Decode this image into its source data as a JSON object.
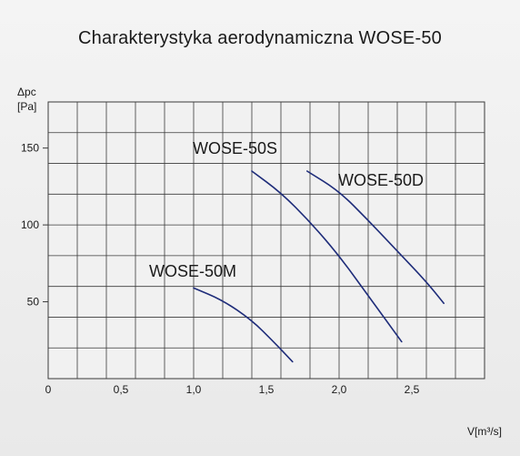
{
  "title": "Charakterystyka aerodynamiczna WOSE-50",
  "chart_data": {
    "type": "line",
    "title": "Charakterystyka aerodynamiczna WOSE-50",
    "ylabel_line1": "Δpc",
    "ylabel_line2": "[Pa]",
    "xlabel": "V[m³/s]",
    "xlim": [
      0,
      3.0
    ],
    "ylim": [
      0,
      180
    ],
    "grid": true,
    "x_ticks": [
      {
        "value": 0,
        "label": "0"
      },
      {
        "value": 0.5,
        "label": "0,5"
      },
      {
        "value": 1.0,
        "label": "1,0"
      },
      {
        "value": 1.5,
        "label": "1,5"
      },
      {
        "value": 2.0,
        "label": "2,0"
      },
      {
        "value": 2.5,
        "label": "2,5"
      }
    ],
    "y_ticks": [
      {
        "value": 50,
        "label": "50"
      },
      {
        "value": 100,
        "label": "100"
      },
      {
        "value": 150,
        "label": "150"
      }
    ],
    "color": "#1f2d7a",
    "series": [
      {
        "name": "WOSE-50M",
        "x": [
          1.0,
          1.2,
          1.4,
          1.55,
          1.68
        ],
        "y": [
          59,
          51,
          38,
          24,
          11
        ]
      },
      {
        "name": "WOSE-50S",
        "x": [
          1.4,
          1.6,
          1.8,
          2.0,
          2.2,
          2.43
        ],
        "y": [
          135,
          121,
          102,
          80,
          54,
          24
        ]
      },
      {
        "name": "WOSE-50D",
        "x": [
          1.78,
          2.0,
          2.2,
          2.4,
          2.6,
          2.72
        ],
        "y": [
          135,
          122,
          103,
          83,
          63,
          49
        ]
      }
    ]
  }
}
